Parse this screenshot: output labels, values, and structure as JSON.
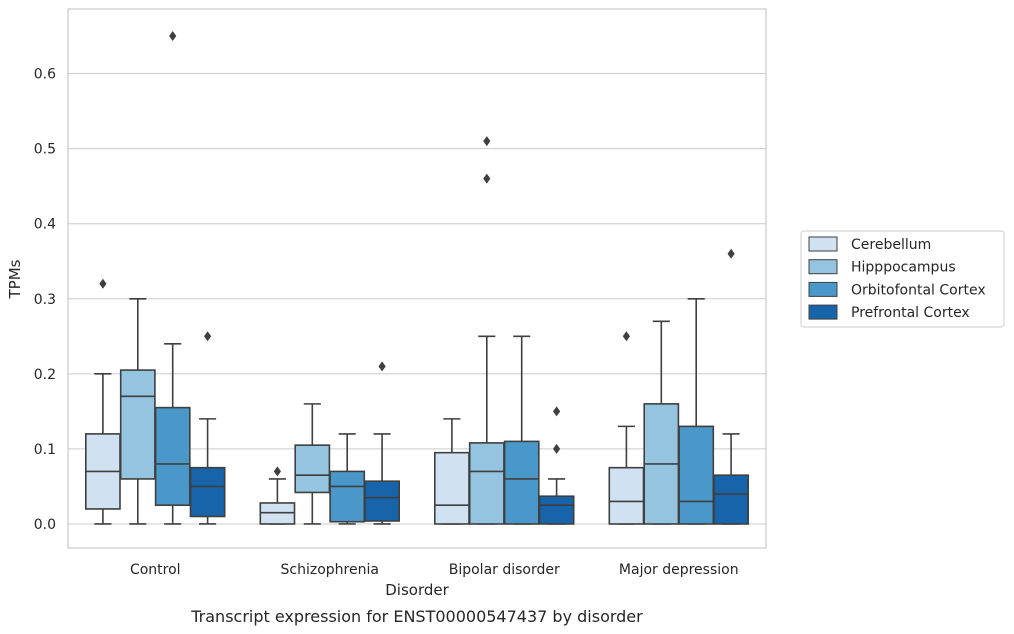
{
  "chart_data": {
    "type": "box",
    "title": "",
    "caption": "Transcript expression for ENST00000547437 by disorder",
    "xlabel": "Disorder",
    "ylabel": "TPMs",
    "ylim": [
      -0.032,
      0.686
    ],
    "yticks": [
      0.0,
      0.1,
      0.2,
      0.3,
      0.4,
      0.5,
      0.6
    ],
    "ytick_labels": [
      "0.0",
      "0.1",
      "0.2",
      "0.3",
      "0.4",
      "0.5",
      "0.6"
    ],
    "grid": "horizontal",
    "legend_position": "right",
    "categories": [
      "Control",
      "Schizophrenia",
      "Bipolar disorder",
      "Major depression"
    ],
    "series": [
      {
        "name": "Cerebellum",
        "color": "#d0e1f2",
        "boxes": [
          {
            "whisker_low": 0.0,
            "q1": 0.02,
            "median": 0.07,
            "q3": 0.12,
            "whisker_high": 0.2,
            "outliers": [
              0.32
            ]
          },
          {
            "whisker_low": 0.0,
            "q1": 0.0,
            "median": 0.015,
            "q3": 0.028,
            "whisker_high": 0.06,
            "outliers": [
              0.07
            ]
          },
          {
            "whisker_low": 0.0,
            "q1": 0.0,
            "median": 0.025,
            "q3": 0.095,
            "whisker_high": 0.14,
            "outliers": []
          },
          {
            "whisker_low": 0.0,
            "q1": 0.0,
            "median": 0.03,
            "q3": 0.075,
            "whisker_high": 0.13,
            "outliers": [
              0.25
            ]
          }
        ]
      },
      {
        "name": "Hipppocampus",
        "color": "#94c4df",
        "boxes": [
          {
            "whisker_low": 0.0,
            "q1": 0.06,
            "median": 0.17,
            "q3": 0.205,
            "whisker_high": 0.3,
            "outliers": []
          },
          {
            "whisker_low": 0.0,
            "q1": 0.042,
            "median": 0.065,
            "q3": 0.105,
            "whisker_high": 0.16,
            "outliers": []
          },
          {
            "whisker_low": 0.0,
            "q1": 0.0,
            "median": 0.07,
            "q3": 0.108,
            "whisker_high": 0.25,
            "outliers": [
              0.46,
              0.51
            ]
          },
          {
            "whisker_low": 0.0,
            "q1": 0.0,
            "median": 0.08,
            "q3": 0.16,
            "whisker_high": 0.27,
            "outliers": []
          }
        ]
      },
      {
        "name": "Orbitofontal Cortex",
        "color": "#4a98c9",
        "boxes": [
          {
            "whisker_low": 0.0,
            "q1": 0.025,
            "median": 0.08,
            "q3": 0.155,
            "whisker_high": 0.24,
            "outliers": [
              0.65
            ]
          },
          {
            "whisker_low": 0.0,
            "q1": 0.003,
            "median": 0.05,
            "q3": 0.07,
            "whisker_high": 0.12,
            "outliers": []
          },
          {
            "whisker_low": 0.0,
            "q1": 0.0,
            "median": 0.06,
            "q3": 0.11,
            "whisker_high": 0.25,
            "outliers": []
          },
          {
            "whisker_low": 0.0,
            "q1": 0.0,
            "median": 0.03,
            "q3": 0.13,
            "whisker_high": 0.3,
            "outliers": []
          }
        ]
      },
      {
        "name": "Prefrontal Cortex",
        "color": "#1764ab",
        "boxes": [
          {
            "whisker_low": 0.0,
            "q1": 0.01,
            "median": 0.05,
            "q3": 0.075,
            "whisker_high": 0.14,
            "outliers": [
              0.25
            ]
          },
          {
            "whisker_low": 0.0,
            "q1": 0.004,
            "median": 0.035,
            "q3": 0.057,
            "whisker_high": 0.12,
            "outliers": [
              0.21
            ]
          },
          {
            "whisker_low": 0.0,
            "q1": 0.0,
            "median": 0.025,
            "q3": 0.037,
            "whisker_high": 0.06,
            "outliers": [
              0.1,
              0.15
            ]
          },
          {
            "whisker_low": 0.0,
            "q1": 0.0,
            "median": 0.04,
            "q3": 0.065,
            "whisker_high": 0.12,
            "outliers": [
              0.36
            ]
          }
        ]
      }
    ],
    "colors": {
      "line": "#3f3f3f",
      "grid": "#cccccc",
      "axes_border": "#cccccc",
      "text": "#262626"
    }
  }
}
